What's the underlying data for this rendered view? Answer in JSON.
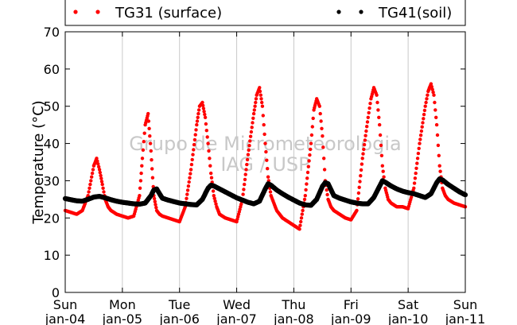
{
  "chart_data": {
    "type": "scatter",
    "title": "",
    "ylabel": "Temperature (°C)",
    "xlabel": "",
    "ylim": [
      0,
      70
    ],
    "yticks": [
      "0",
      "10",
      "20",
      "30",
      "40",
      "50",
      "60",
      "70"
    ],
    "x_unit": "days since Sun jan-04",
    "xlim": [
      0,
      7
    ],
    "xticks": [
      {
        "day": "Sun",
        "date": "jan-04"
      },
      {
        "day": "Mon",
        "date": "jan-05"
      },
      {
        "day": "Tue",
        "date": "jan-06"
      },
      {
        "day": "Wed",
        "date": "jan-07"
      },
      {
        "day": "Thu",
        "date": "jan-08"
      },
      {
        "day": "Fri",
        "date": "jan-09"
      },
      {
        "day": "Sat",
        "date": "jan-10"
      },
      {
        "day": "Sun",
        "date": "jan-11"
      }
    ],
    "grid": "vertical",
    "legend_position": "top",
    "watermark": [
      "Grupo de Micrometeorologia",
      "IAG / USP"
    ],
    "series": [
      {
        "name": "TG31 (surface)",
        "color": "#ff0000",
        "x": [
          0.0,
          0.1,
          0.2,
          0.3,
          0.4,
          0.45,
          0.5,
          0.55,
          0.6,
          0.65,
          0.7,
          0.75,
          0.8,
          0.9,
          1.0,
          1.1,
          1.2,
          1.3,
          1.35,
          1.4,
          1.45,
          1.5,
          1.55,
          1.6,
          1.65,
          1.7,
          1.8,
          1.9,
          2.0,
          2.1,
          2.2,
          2.3,
          2.35,
          2.4,
          2.45,
          2.5,
          2.55,
          2.6,
          2.65,
          2.7,
          2.8,
          2.9,
          3.0,
          3.1,
          3.2,
          3.3,
          3.35,
          3.4,
          3.45,
          3.5,
          3.55,
          3.6,
          3.65,
          3.7,
          3.8,
          3.9,
          4.0,
          4.1,
          4.2,
          4.3,
          4.35,
          4.4,
          4.45,
          4.5,
          4.55,
          4.6,
          4.65,
          4.7,
          4.8,
          4.9,
          5.0,
          5.1,
          5.2,
          5.3,
          5.35,
          5.4,
          5.45,
          5.5,
          5.55,
          5.6,
          5.65,
          5.7,
          5.8,
          5.9,
          6.0,
          6.1,
          6.2,
          6.3,
          6.35,
          6.4,
          6.45,
          6.5,
          6.55,
          6.6,
          6.65,
          6.7,
          6.8,
          6.9,
          7.0
        ],
        "y": [
          22,
          21.5,
          21,
          22,
          26,
          30,
          34,
          36,
          33,
          29,
          25,
          23,
          22,
          21,
          20.5,
          20,
          20.5,
          26,
          36,
          45,
          48,
          38,
          26,
          22,
          21,
          20.5,
          20,
          19.5,
          19,
          23,
          33,
          45,
          50,
          51,
          47,
          40,
          32,
          26,
          23,
          21,
          20,
          19.5,
          19,
          25,
          37,
          48,
          53,
          55,
          50,
          40,
          31,
          26,
          24,
          22,
          20,
          19,
          18,
          17,
          26,
          40,
          49,
          52,
          50,
          42,
          30,
          25,
          23,
          22,
          21,
          20,
          19.5,
          22,
          36,
          47,
          52,
          55,
          53,
          45,
          34,
          28,
          25,
          24,
          23,
          23,
          22.5,
          28,
          40,
          50,
          54,
          56,
          53,
          45,
          34,
          28,
          26,
          25,
          24,
          23.5,
          23
        ]
      },
      {
        "name": "TG41(soil)",
        "color": "#000000",
        "x": [
          0.0,
          0.1,
          0.2,
          0.3,
          0.4,
          0.5,
          0.6,
          0.7,
          0.8,
          0.9,
          1.0,
          1.1,
          1.2,
          1.3,
          1.4,
          1.5,
          1.55,
          1.6,
          1.65,
          1.7,
          1.8,
          1.9,
          2.0,
          2.1,
          2.2,
          2.3,
          2.4,
          2.5,
          2.55,
          2.6,
          2.7,
          2.8,
          2.9,
          3.0,
          3.1,
          3.2,
          3.3,
          3.4,
          3.5,
          3.55,
          3.6,
          3.7,
          3.8,
          3.9,
          4.0,
          4.1,
          4.2,
          4.3,
          4.4,
          4.5,
          4.55,
          4.6,
          4.7,
          4.8,
          4.9,
          5.0,
          5.1,
          5.2,
          5.3,
          5.4,
          5.5,
          5.55,
          5.6,
          5.7,
          5.8,
          5.9,
          6.0,
          6.1,
          6.2,
          6.3,
          6.4,
          6.5,
          6.55,
          6.6,
          6.7,
          6.8,
          6.9,
          7.0
        ],
        "y": [
          25.2,
          24.9,
          24.6,
          24.5,
          25,
          25.6,
          25.8,
          25.4,
          24.9,
          24.5,
          24.2,
          24,
          23.8,
          23.7,
          24,
          26,
          27.5,
          27.8,
          26.5,
          25.3,
          24.8,
          24.4,
          24,
          23.8,
          23.6,
          23.5,
          25,
          28,
          28.8,
          28.6,
          27.8,
          27,
          26.2,
          25.4,
          24.8,
          24.2,
          23.8,
          24.5,
          27.8,
          29.2,
          28.8,
          27.5,
          26.5,
          25.6,
          24.8,
          24,
          23.5,
          23.4,
          25,
          28.5,
          29.5,
          29.2,
          26,
          25.3,
          24.8,
          24.3,
          24,
          23.8,
          23.8,
          25.5,
          28.5,
          30,
          29.6,
          28.6,
          27.8,
          27.2,
          26.8,
          26.5,
          26,
          25.5,
          26.5,
          29.5,
          30.5,
          30.2,
          29,
          28,
          27,
          26.2
        ]
      }
    ]
  }
}
